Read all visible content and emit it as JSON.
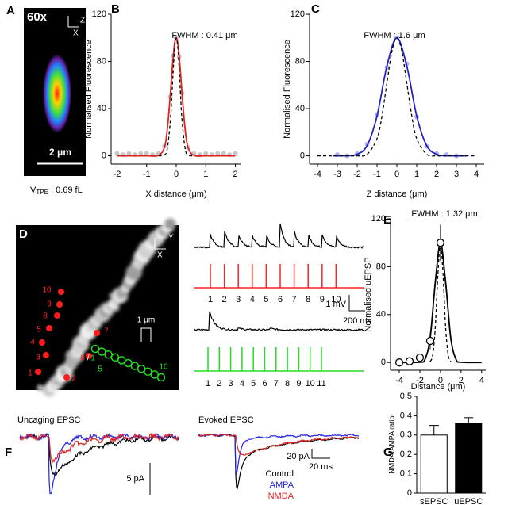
{
  "panels": {
    "A": {
      "label": "A",
      "magnification": "60x",
      "axis_z": "Z",
      "axis_x": "X",
      "scale_bar": "2 μm",
      "volume_symbol": "V",
      "volume_subscript": "TPE",
      "volume_value": " : 0.69 fL"
    },
    "B": {
      "label": "B"
    },
    "C": {
      "label": "C"
    },
    "D": {
      "label": "D",
      "axis_y": "Y",
      "axis_x": "X",
      "red_sites": [
        "1",
        "2",
        "3",
        "4",
        "5",
        "6",
        "7",
        "8",
        "9",
        "10"
      ],
      "separator": "/",
      "green_sites": [
        "1",
        "5",
        "10"
      ],
      "distance": "1 μm",
      "red_pulses": [
        "1",
        "2",
        "3",
        "4",
        "5",
        "6",
        "7",
        "8",
        "9",
        "10"
      ],
      "green_pulses": [
        "1",
        "2",
        "3",
        "4",
        "5",
        "6",
        "7",
        "8",
        "9",
        "10",
        "11"
      ],
      "scale_voltage": "1 mV",
      "scale_time": "200 ms"
    },
    "E": {
      "label": "E"
    },
    "F": {
      "label": "F",
      "uncaging_title": "Uncaging EPSC",
      "evoked_title": "Evoked EPSC",
      "uncaging_scale": "5 pA",
      "evoked_scale_current": "20 pA",
      "evoked_scale_time": "20 ms",
      "legend": [
        {
          "name": "Control",
          "color": "#000000"
        },
        {
          "name": "AMPA",
          "color": "#2424e0"
        },
        {
          "name": "NMDA",
          "color": "#e02424"
        }
      ]
    },
    "G": {
      "label": "G"
    }
  },
  "chart_data": [
    {
      "type": "line",
      "annotation": "FWHM : 0.41 μm",
      "xlabel": "X distance (μm)",
      "ylabel": "Normalised Fluorescence",
      "xlim": [
        -2.2,
        2.2
      ],
      "xticks": [
        -2,
        -1,
        0,
        1,
        2
      ],
      "ylim": [
        -7,
        120
      ],
      "yticks": [
        0,
        40,
        80,
        120
      ],
      "points": {
        "color": "#c8c8c8",
        "x": [
          -2,
          -1.8,
          -1.6,
          -1.4,
          -1.2,
          -1,
          -0.8,
          -0.6,
          -0.4,
          -0.2,
          -0.1,
          0,
          0.1,
          0.2,
          0.4,
          0.6,
          0.8,
          1,
          1.2,
          1.4,
          1.6,
          1.8,
          2
        ],
        "values": [
          2,
          1,
          2,
          1,
          2,
          2,
          1,
          2,
          8,
          50,
          85,
          100,
          84,
          53,
          7,
          2,
          1,
          2,
          1,
          2,
          2,
          1,
          2
        ]
      },
      "series": [
        {
          "color": "#e02424",
          "dashed": false,
          "x": [
            -2,
            -1,
            -0.6,
            -0.4,
            -0.3,
            -0.2,
            -0.15,
            -0.1,
            -0.05,
            0,
            0.05,
            0.1,
            0.15,
            0.2,
            0.3,
            0.4,
            0.6,
            1,
            2
          ],
          "values": [
            0,
            0,
            0.3,
            7.1,
            22.7,
            51.7,
            69,
            84.8,
            96,
            100,
            96,
            84.8,
            69,
            51.7,
            22.7,
            7.1,
            0.3,
            0,
            0
          ]
        },
        {
          "color": "#000000",
          "dashed": true,
          "x": [
            -0.6,
            -0.4,
            -0.3,
            -0.2,
            -0.15,
            -0.1,
            -0.05,
            0,
            0.05,
            0.1,
            0.15,
            0.2,
            0.3,
            0.4,
            0.6
          ],
          "values": [
            0,
            0.7,
            6.2,
            29,
            49.8,
            73.4,
            92.6,
            100,
            92.6,
            73.4,
            49.8,
            29,
            6.2,
            0.7,
            0
          ]
        }
      ]
    },
    {
      "type": "line",
      "annotation": "FWHM : 1.6 μm",
      "xlabel": "Z distance (μm)",
      "ylabel": "Normalised Fluorescence",
      "xlim": [
        -4.4,
        4.4
      ],
      "xticks": [
        -4,
        -3,
        -2,
        -1,
        0,
        1,
        2,
        3,
        4
      ],
      "ylim": [
        -7,
        120
      ],
      "yticks": [
        0,
        40,
        80,
        120
      ],
      "points": {
        "color": "#b4b4ec",
        "x": [
          -3,
          -2.5,
          -2,
          -1.5,
          -1,
          -0.5,
          0,
          0.5,
          1,
          1.5,
          2,
          2.5,
          3
        ],
        "values": [
          1,
          0,
          2,
          10,
          35,
          75,
          100,
          78,
          33,
          8,
          2,
          1,
          0
        ]
      },
      "series": [
        {
          "color": "#2424c0",
          "dashed": false,
          "x": [
            -3.2,
            -2.5,
            -2,
            -1.5,
            -1,
            -0.5,
            0,
            0.5,
            1,
            1.5,
            2,
            2.5,
            3.5
          ],
          "values": [
            0,
            0.1,
            1.3,
            8.7,
            33.8,
            76.2,
            100,
            76.2,
            33.8,
            8.7,
            1.3,
            0.1,
            0
          ]
        },
        {
          "color": "#000000",
          "dashed": true,
          "x": [
            -4,
            -2.5,
            -2,
            -1.5,
            -1,
            -0.75,
            -0.5,
            -0.25,
            0,
            0.25,
            0.5,
            0.75,
            1,
            1.5,
            2,
            2.5,
            4
          ],
          "values": [
            0,
            0,
            0,
            1.3,
            14.6,
            33.9,
            61.8,
            88.7,
            100,
            88.7,
            61.8,
            33.9,
            14.6,
            1.3,
            0,
            0,
            0
          ]
        }
      ]
    },
    {
      "type": "line",
      "annotation": "FWHM : 1.32 μm",
      "xlabel": "Distance (μm)",
      "ylabel": "Normalised uEPSP",
      "xlim": [
        -4.85,
        4.4
      ],
      "xticks": [
        -4,
        -2,
        0,
        2,
        4
      ],
      "ylim": [
        -6.5,
        120
      ],
      "yticks": [
        0,
        40,
        80,
        120
      ],
      "markers": {
        "x": [
          -4,
          -3,
          -2,
          -1,
          0
        ],
        "values": [
          0,
          1,
          4,
          18,
          100
        ],
        "errors": [
          0,
          0,
          2,
          7,
          15
        ]
      },
      "series": [
        {
          "color": "#000000",
          "dashed": false,
          "x": [
            -4,
            -2,
            -1.5,
            -1,
            -0.5,
            0,
            0.5,
            1,
            1.5,
            2,
            4
          ],
          "values": [
            0,
            0.2,
            2.8,
            20.4,
            67,
            100,
            67,
            20.4,
            2.8,
            0.2,
            0
          ]
        },
        {
          "color": "#000000",
          "dashed": true,
          "x": [
            -1,
            -0.75,
            -0.5,
            -0.25,
            0,
            0.25,
            0.5,
            0.75,
            1
          ],
          "values": [
            0.8,
            6.4,
            29.6,
            73.7,
            100,
            73.7,
            29.6,
            6.4,
            0.8
          ]
        }
      ]
    },
    {
      "type": "bar",
      "ylabel": "NMDA/AMPA ratio",
      "categories": [
        "sEPSC",
        "uEPSC"
      ],
      "values": [
        0.3,
        0.36
      ],
      "errors": [
        0.05,
        0.03
      ],
      "colors": [
        "#ffffff",
        "#000000"
      ],
      "ylim": [
        0,
        0.5
      ],
      "yticks": [
        0,
        0.1,
        0.2,
        0.3,
        0.4,
        0.5
      ]
    }
  ]
}
